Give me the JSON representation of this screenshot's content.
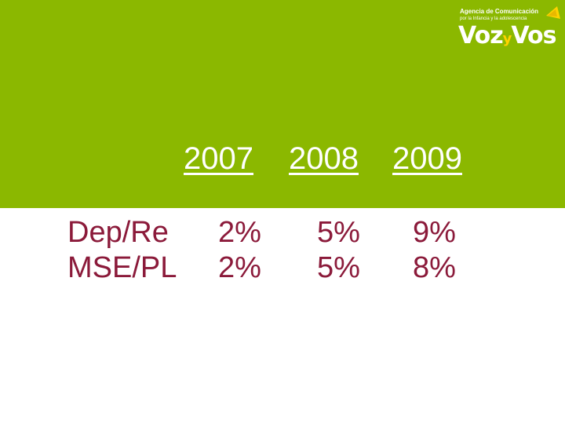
{
  "colors": {
    "band": "#8bb800",
    "text_dark_red": "#8b1a3a",
    "white": "#ffffff",
    "logo_accent": "#ffd200"
  },
  "logo": {
    "line1": "Agencia de Comunicación",
    "line2": "por la Infancia y la adolescencia",
    "brand_left": "Voz",
    "brand_mid": "y",
    "brand_right": "Vos"
  },
  "table": {
    "years": [
      "2007",
      "2008",
      "2009"
    ],
    "rows": [
      {
        "label": "Dep/Re",
        "values": [
          "2%",
          "5%",
          "9%"
        ]
      },
      {
        "label": "MSE/PL",
        "values": [
          "2%",
          "5%",
          "8%"
        ]
      }
    ]
  }
}
